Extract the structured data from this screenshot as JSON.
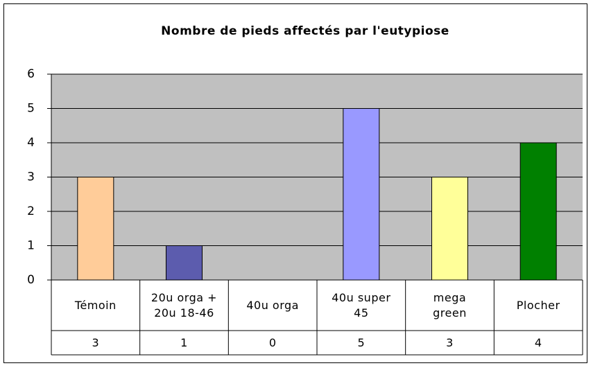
{
  "chart_data": {
    "type": "bar",
    "title": "Nombre de pieds affectés par l'eutypiose",
    "categories": [
      "Témoin",
      "20u orga +\n20u 18-46",
      "40u orga",
      "40u super\n45",
      "mega\ngreen",
      "Plocher"
    ],
    "values": [
      3,
      1,
      0,
      5,
      3,
      4
    ],
    "colors": [
      "#ffcc99",
      "#5c5cae",
      "#9999ff",
      "#9999ff",
      "#ffff99",
      "#008000"
    ],
    "ylim": [
      0,
      6
    ],
    "yticks": [
      0,
      1,
      2,
      3,
      4,
      5,
      6
    ],
    "grid": true,
    "data_table": true
  }
}
